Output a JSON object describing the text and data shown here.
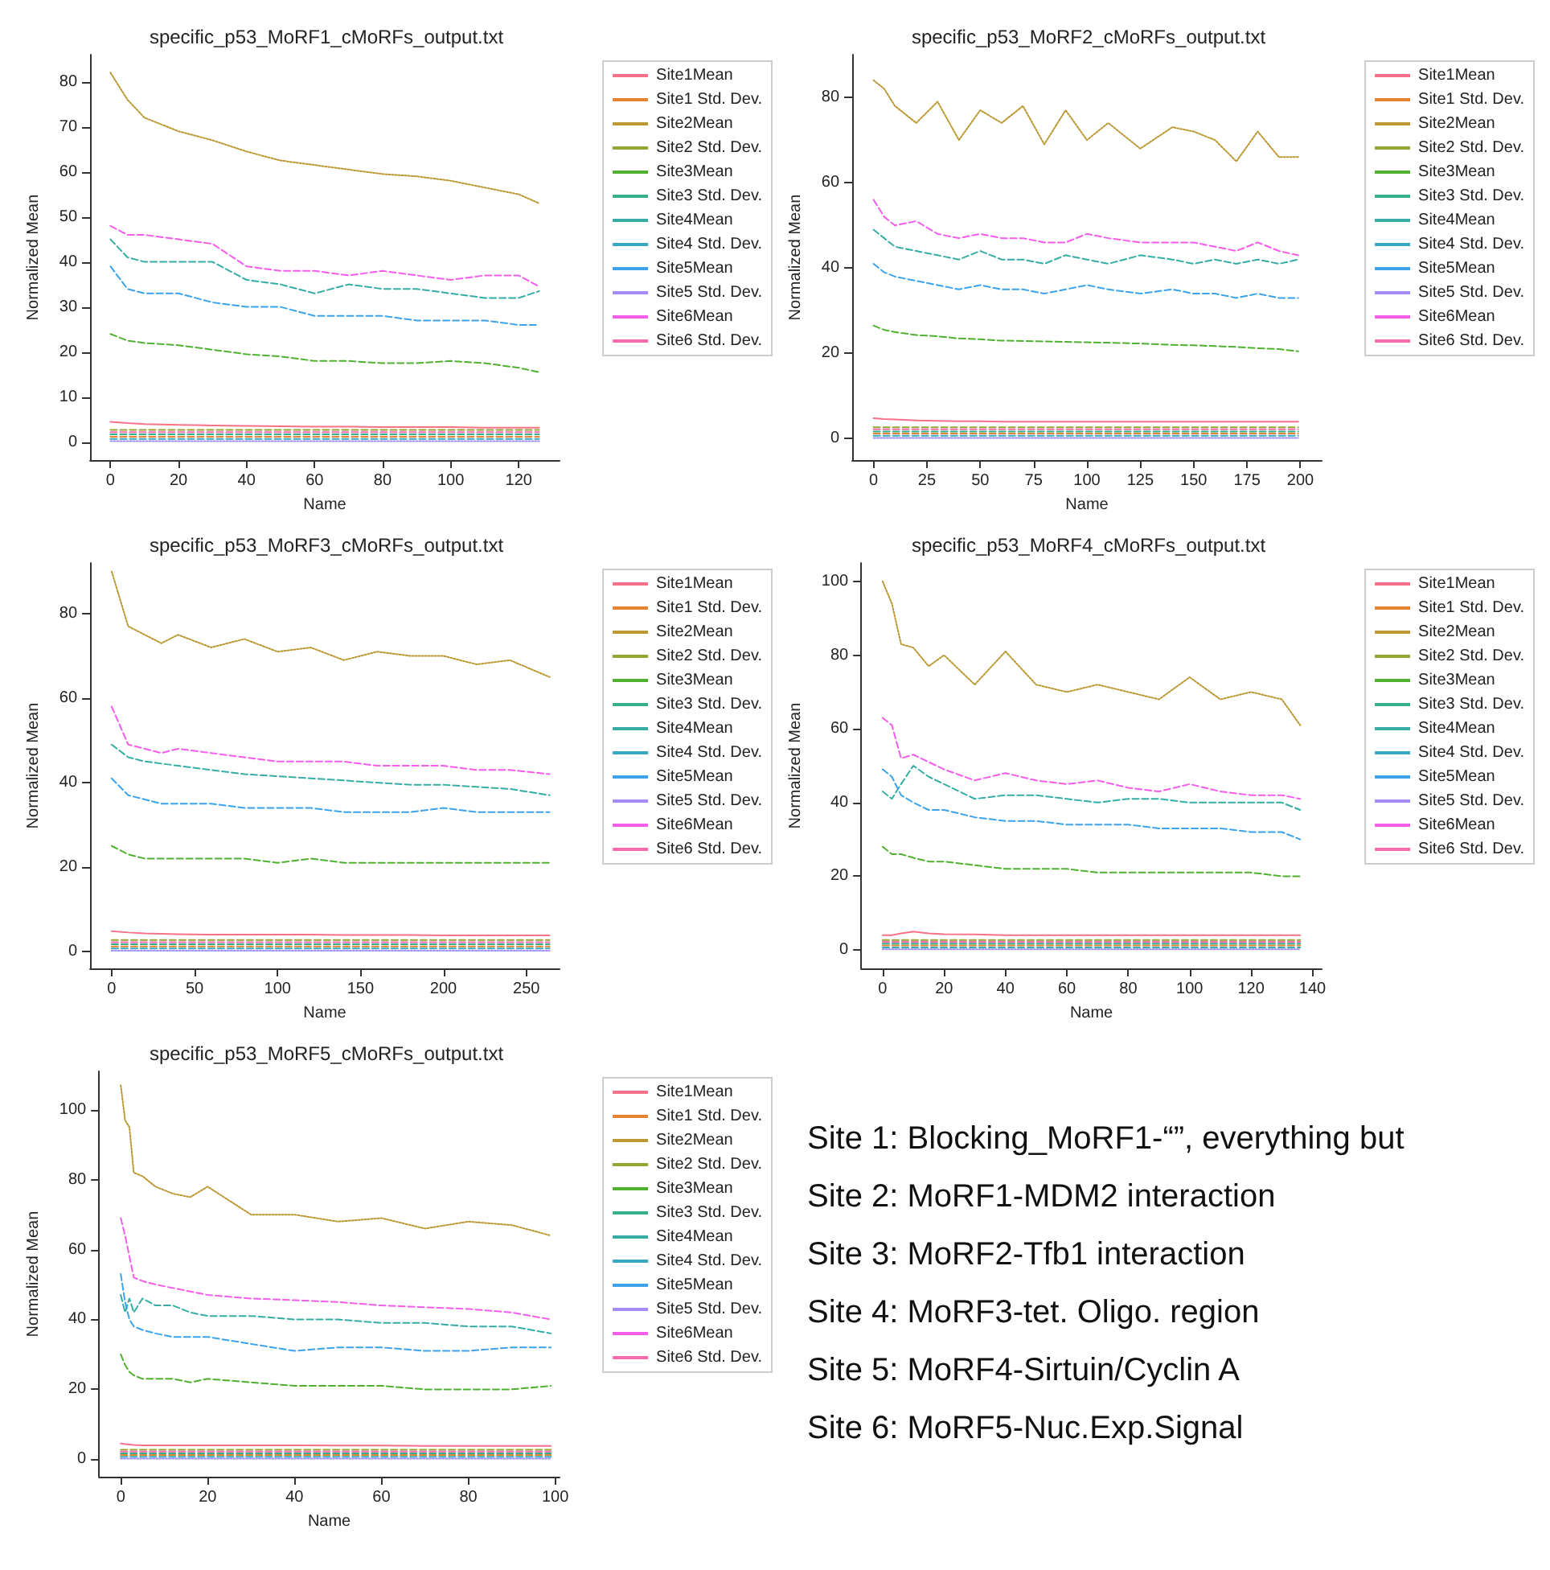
{
  "chart_data": [
    {
      "type": "line",
      "title": "specific_p53_MoRF1_cMoRFs_output.txt",
      "xlabel": "Name",
      "ylabel": "Normalized Mean",
      "xlim": [
        -6,
        132
      ],
      "xticks": [
        0,
        20,
        40,
        60,
        80,
        100,
        120
      ],
      "ylim": [
        -4,
        86
      ],
      "yticks": [
        0,
        10,
        20,
        30,
        40,
        50,
        60,
        70,
        80
      ],
      "legend": "right",
      "x": [
        0,
        5,
        10,
        20,
        30,
        40,
        50,
        60,
        70,
        80,
        90,
        100,
        110,
        120,
        126
      ],
      "series": [
        {
          "name": "Site1Mean",
          "color": "#f77189",
          "line_style": "solid",
          "values": [
            4.5,
            4.2,
            4,
            3.8,
            3.7,
            3.6,
            3.5,
            3.4,
            3.4,
            3.3,
            3.3,
            3.3,
            3.2,
            3.2,
            3.2
          ]
        },
        {
          "name": "Site1 Std. Dev.",
          "color": "#e68332",
          "line_style": "dashed",
          "values": [
            1.2,
            1.2,
            1.2,
            1.2,
            1.2,
            1.2,
            1.2,
            1.2,
            1.2,
            1.2,
            1.2,
            1.2,
            1.2,
            1.2,
            1.2
          ]
        },
        {
          "name": "Site2Mean",
          "color": "#bb9832",
          "line_style": "dotted",
          "values": [
            82,
            76,
            72,
            69,
            67,
            64.5,
            62.5,
            61.5,
            60.5,
            59.5,
            59,
            58,
            56.5,
            55,
            53
          ]
        },
        {
          "name": "Site2 Std. Dev.",
          "color": "#97a431",
          "line_style": "dashed",
          "values": [
            2.7,
            2.7,
            2.7,
            2.7,
            2.7,
            2.7,
            2.7,
            2.7,
            2.7,
            2.7,
            2.7,
            2.7,
            2.7,
            2.7,
            2.7
          ]
        },
        {
          "name": "Site3Mean",
          "color": "#50b131",
          "line_style": "dashed",
          "values": [
            24,
            22.5,
            22,
            21.5,
            20.5,
            19.5,
            19,
            18,
            18,
            17.5,
            17.5,
            18,
            17.5,
            16.5,
            15.5
          ]
        },
        {
          "name": "Site3 Std. Dev.",
          "color": "#34af8a",
          "line_style": "dashed",
          "values": [
            1.7,
            1.7,
            1.7,
            1.7,
            1.7,
            1.7,
            1.7,
            1.7,
            1.7,
            1.7,
            1.7,
            1.7,
            1.7,
            1.7,
            1.7
          ]
        },
        {
          "name": "Site4Mean",
          "color": "#36ada4",
          "line_style": "dashed",
          "values": [
            45,
            41,
            40,
            40,
            40,
            36,
            35,
            33,
            35,
            34,
            34,
            33,
            32,
            32,
            33.5
          ]
        },
        {
          "name": "Site4 Std. Dev.",
          "color": "#38aabf",
          "line_style": "dashed",
          "values": [
            0.7,
            0.7,
            0.7,
            0.7,
            0.7,
            0.7,
            0.7,
            0.7,
            0.7,
            0.7,
            0.7,
            0.7,
            0.7,
            0.7,
            0.7
          ]
        },
        {
          "name": "Site5Mean",
          "color": "#3ba3ec",
          "line_style": "dashed",
          "values": [
            39,
            34,
            33,
            33,
            31,
            30,
            30,
            28,
            28,
            28,
            27,
            27,
            27,
            26,
            26
          ]
        },
        {
          "name": "Site5 Std. Dev.",
          "color": "#a48cf4",
          "line_style": "dotted",
          "values": [
            0.2,
            0.2,
            0.2,
            0.2,
            0.2,
            0.2,
            0.2,
            0.2,
            0.2,
            0.2,
            0.2,
            0.2,
            0.2,
            0.2,
            0.2
          ]
        },
        {
          "name": "Site6Mean",
          "color": "#f45deb",
          "line_style": "dashed",
          "values": [
            48,
            46,
            46,
            45,
            44,
            39,
            38,
            38,
            37,
            38,
            37,
            36,
            37,
            37,
            34.5
          ]
        },
        {
          "name": "Site6 Std. Dev.",
          "color": "#f66bad",
          "line_style": "dashed",
          "values": [
            2.2,
            2.2,
            2.2,
            2.2,
            2.2,
            2.2,
            2.2,
            2.2,
            2.2,
            2.2,
            2.2,
            2.2,
            2.2,
            2.2,
            2.2
          ]
        }
      ]
    },
    {
      "type": "line",
      "title": "specific_p53_MoRF2_cMoRFs_output.txt",
      "xlabel": "Name",
      "ylabel": "Normalized Mean",
      "xlim": [
        -10,
        210
      ],
      "xticks": [
        0,
        25,
        50,
        75,
        100,
        125,
        150,
        175,
        200
      ],
      "ylim": [
        -5,
        90
      ],
      "yticks": [
        0,
        20,
        40,
        60,
        80
      ],
      "legend": "right",
      "x": [
        0,
        5,
        10,
        20,
        30,
        40,
        50,
        60,
        70,
        80,
        90,
        100,
        110,
        125,
        140,
        150,
        160,
        170,
        180,
        190,
        199
      ],
      "series": [
        {
          "name": "Site1Mean",
          "color": "#f77189",
          "line_style": "solid",
          "values": [
            4.8,
            4.6,
            4.5,
            4.3,
            4.2,
            4.1,
            4.1,
            4,
            4,
            4,
            4,
            4,
            4,
            4,
            4,
            4,
            4,
            4,
            4,
            4,
            4
          ]
        },
        {
          "name": "Site1 Std. Dev.",
          "color": "#e68332",
          "line_style": "dashed",
          "values": [
            1.2,
            1.2,
            1.2,
            1.2,
            1.2,
            1.2,
            1.2,
            1.2,
            1.2,
            1.2,
            1.2,
            1.2,
            1.2,
            1.2,
            1.2,
            1.2,
            1.2,
            1.2,
            1.2,
            1.2,
            1.2
          ]
        },
        {
          "name": "Site2Mean",
          "color": "#bb9832",
          "line_style": "dotted",
          "values": [
            84,
            82,
            78,
            74,
            79,
            70,
            77,
            74,
            78,
            69,
            77,
            70,
            74,
            68,
            73,
            72,
            70,
            65,
            72,
            66,
            66
          ]
        },
        {
          "name": "Site2 Std. Dev.",
          "color": "#97a431",
          "line_style": "dashed",
          "values": [
            2.7,
            2.7,
            2.7,
            2.7,
            2.7,
            2.7,
            2.7,
            2.7,
            2.7,
            2.7,
            2.7,
            2.7,
            2.7,
            2.7,
            2.7,
            2.7,
            2.7,
            2.7,
            2.7,
            2.7,
            2.7
          ]
        },
        {
          "name": "Site3Mean",
          "color": "#50b131",
          "line_style": "dashed",
          "values": [
            26.5,
            25.5,
            25,
            24.3,
            24,
            23.5,
            23.3,
            23,
            22.9,
            22.8,
            22.7,
            22.6,
            22.5,
            22.3,
            22,
            21.9,
            21.7,
            21.5,
            21.2,
            21,
            20.5
          ]
        },
        {
          "name": "Site3 Std. Dev.",
          "color": "#34af8a",
          "line_style": "dashed",
          "values": [
            1.7,
            1.7,
            1.7,
            1.7,
            1.7,
            1.7,
            1.7,
            1.7,
            1.7,
            1.7,
            1.7,
            1.7,
            1.7,
            1.7,
            1.7,
            1.7,
            1.7,
            1.7,
            1.7,
            1.7,
            1.7
          ]
        },
        {
          "name": "Site4Mean",
          "color": "#36ada4",
          "line_style": "dashed",
          "values": [
            49,
            47,
            45,
            44,
            43,
            42,
            44,
            42,
            42,
            41,
            43,
            42,
            41,
            43,
            42,
            41,
            42,
            41,
            42,
            41,
            42
          ]
        },
        {
          "name": "Site4 Std. Dev.",
          "color": "#38aabf",
          "line_style": "dashed",
          "values": [
            0.7,
            0.7,
            0.7,
            0.7,
            0.7,
            0.7,
            0.7,
            0.7,
            0.7,
            0.7,
            0.7,
            0.7,
            0.7,
            0.7,
            0.7,
            0.7,
            0.7,
            0.7,
            0.7,
            0.7,
            0.7
          ]
        },
        {
          "name": "Site5Mean",
          "color": "#3ba3ec",
          "line_style": "dashed",
          "values": [
            41,
            39,
            38,
            37,
            36,
            35,
            36,
            35,
            35,
            34,
            35,
            36,
            35,
            34,
            35,
            34,
            34,
            33,
            34,
            33,
            33
          ]
        },
        {
          "name": "Site5 Std. Dev.",
          "color": "#a48cf4",
          "line_style": "dotted",
          "values": [
            0.2,
            0.2,
            0.2,
            0.2,
            0.2,
            0.2,
            0.2,
            0.2,
            0.2,
            0.2,
            0.2,
            0.2,
            0.2,
            0.2,
            0.2,
            0.2,
            0.2,
            0.2,
            0.2,
            0.2,
            0.2
          ]
        },
        {
          "name": "Site6Mean",
          "color": "#f45deb",
          "line_style": "dashed",
          "values": [
            56,
            52,
            50,
            51,
            48,
            47,
            48,
            47,
            47,
            46,
            46,
            48,
            47,
            46,
            46,
            46,
            45,
            44,
            46,
            44,
            43
          ]
        },
        {
          "name": "Site6 Std. Dev.",
          "color": "#f66bad",
          "line_style": "dashed",
          "values": [
            2.2,
            2.2,
            2.2,
            2.2,
            2.2,
            2.2,
            2.2,
            2.2,
            2.2,
            2.2,
            2.2,
            2.2,
            2.2,
            2.2,
            2.2,
            2.2,
            2.2,
            2.2,
            2.2,
            2.2,
            2.2
          ]
        }
      ]
    },
    {
      "type": "line",
      "title": "specific_p53_MoRF3_cMoRFs_output.txt",
      "xlabel": "Name",
      "ylabel": "Normalized Mean",
      "xlim": [
        -13,
        270
      ],
      "xticks": [
        0,
        50,
        100,
        150,
        200,
        250
      ],
      "ylim": [
        -4,
        92
      ],
      "yticks": [
        0,
        20,
        40,
        60,
        80
      ],
      "legend": "right",
      "x": [
        0,
        10,
        20,
        30,
        40,
        60,
        80,
        100,
        120,
        140,
        160,
        180,
        200,
        220,
        240,
        264
      ],
      "series": [
        {
          "name": "Site1Mean",
          "color": "#f77189",
          "line_style": "solid",
          "values": [
            4.8,
            4.5,
            4.3,
            4.2,
            4.1,
            4,
            4,
            4,
            4,
            3.9,
            3.9,
            3.9,
            3.8,
            3.8,
            3.8,
            3.8
          ]
        },
        {
          "name": "Site1 Std. Dev.",
          "color": "#e68332",
          "line_style": "dashed",
          "values": [
            1.2,
            1.2,
            1.2,
            1.2,
            1.2,
            1.2,
            1.2,
            1.2,
            1.2,
            1.2,
            1.2,
            1.2,
            1.2,
            1.2,
            1.2,
            1.2
          ]
        },
        {
          "name": "Site2Mean",
          "color": "#bb9832",
          "line_style": "dotted",
          "values": [
            90,
            77,
            75,
            73,
            75,
            72,
            74,
            71,
            72,
            69,
            71,
            70,
            70,
            68,
            69,
            65
          ]
        },
        {
          "name": "Site2 Std. Dev.",
          "color": "#97a431",
          "line_style": "dashed",
          "values": [
            2.7,
            2.7,
            2.7,
            2.7,
            2.7,
            2.7,
            2.7,
            2.7,
            2.7,
            2.7,
            2.7,
            2.7,
            2.7,
            2.7,
            2.7,
            2.7
          ]
        },
        {
          "name": "Site3Mean",
          "color": "#50b131",
          "line_style": "dashed",
          "values": [
            25,
            23,
            22,
            22,
            22,
            22,
            22,
            21,
            22,
            21,
            21,
            21,
            21,
            21,
            21,
            21
          ]
        },
        {
          "name": "Site3 Std. Dev.",
          "color": "#34af8a",
          "line_style": "dashed",
          "values": [
            1.7,
            1.7,
            1.7,
            1.7,
            1.7,
            1.7,
            1.7,
            1.7,
            1.7,
            1.7,
            1.7,
            1.7,
            1.7,
            1.7,
            1.7,
            1.7
          ]
        },
        {
          "name": "Site4Mean",
          "color": "#36ada4",
          "line_style": "dashed",
          "values": [
            49,
            46,
            45,
            44.5,
            44,
            43,
            42,
            41.5,
            41,
            40.5,
            40,
            39.5,
            39.5,
            39,
            38.5,
            37
          ]
        },
        {
          "name": "Site4 Std. Dev.",
          "color": "#38aabf",
          "line_style": "dashed",
          "values": [
            0.7,
            0.7,
            0.7,
            0.7,
            0.7,
            0.7,
            0.7,
            0.7,
            0.7,
            0.7,
            0.7,
            0.7,
            0.7,
            0.7,
            0.7,
            0.7
          ]
        },
        {
          "name": "Site5Mean",
          "color": "#3ba3ec",
          "line_style": "dashed",
          "values": [
            41,
            37,
            36,
            35,
            35,
            35,
            34,
            34,
            34,
            33,
            33,
            33,
            34,
            33,
            33,
            33
          ]
        },
        {
          "name": "Site5 Std. Dev.",
          "color": "#a48cf4",
          "line_style": "dotted",
          "values": [
            0.2,
            0.2,
            0.2,
            0.2,
            0.2,
            0.2,
            0.2,
            0.2,
            0.2,
            0.2,
            0.2,
            0.2,
            0.2,
            0.2,
            0.2,
            0.2
          ]
        },
        {
          "name": "Site6Mean",
          "color": "#f45deb",
          "line_style": "dashed",
          "values": [
            58,
            49,
            48,
            47,
            48,
            47,
            46,
            45,
            45,
            45,
            44,
            44,
            44,
            43,
            43,
            42
          ]
        },
        {
          "name": "Site6 Std. Dev.",
          "color": "#f66bad",
          "line_style": "dashed",
          "values": [
            2.2,
            2.2,
            2.2,
            2.2,
            2.2,
            2.2,
            2.2,
            2.2,
            2.2,
            2.2,
            2.2,
            2.2,
            2.2,
            2.2,
            2.2,
            2.2
          ]
        }
      ]
    },
    {
      "type": "line",
      "title": "specific_p53_MoRF4_cMoRFs_output.txt",
      "xlabel": "Name",
      "ylabel": "Normalized Mean",
      "xlim": [
        -7,
        143
      ],
      "xticks": [
        0,
        20,
        40,
        60,
        80,
        100,
        120,
        140
      ],
      "ylim": [
        -5,
        105
      ],
      "yticks": [
        0,
        20,
        40,
        60,
        80,
        100
      ],
      "legend": "right",
      "x": [
        0,
        3,
        6,
        10,
        15,
        20,
        30,
        40,
        50,
        60,
        70,
        80,
        90,
        100,
        110,
        120,
        130,
        136
      ],
      "series": [
        {
          "name": "Site1Mean",
          "color": "#f77189",
          "line_style": "solid",
          "values": [
            4,
            4,
            4.5,
            5,
            4.5,
            4.3,
            4.2,
            4,
            4,
            4,
            4,
            4,
            4,
            4,
            4,
            4,
            4,
            4
          ]
        },
        {
          "name": "Site1 Std. Dev.",
          "color": "#e68332",
          "line_style": "dashed",
          "values": [
            1.2,
            1.2,
            1.2,
            1.2,
            1.2,
            1.2,
            1.2,
            1.2,
            1.2,
            1.2,
            1.2,
            1.2,
            1.2,
            1.2,
            1.2,
            1.2,
            1.2,
            1.2
          ]
        },
        {
          "name": "Site2Mean",
          "color": "#bb9832",
          "line_style": "dotted",
          "values": [
            100,
            94,
            83,
            82,
            77,
            80,
            72,
            81,
            72,
            70,
            72,
            70,
            68,
            74,
            68,
            70,
            68,
            61
          ]
        },
        {
          "name": "Site2 Std. Dev.",
          "color": "#97a431",
          "line_style": "dashed",
          "values": [
            2.7,
            2.7,
            2.7,
            2.7,
            2.7,
            2.7,
            2.7,
            2.7,
            2.7,
            2.7,
            2.7,
            2.7,
            2.7,
            2.7,
            2.7,
            2.7,
            2.7,
            2.7
          ]
        },
        {
          "name": "Site3Mean",
          "color": "#50b131",
          "line_style": "dashed",
          "values": [
            28,
            26,
            26,
            25,
            24,
            24,
            23,
            22,
            22,
            22,
            21,
            21,
            21,
            21,
            21,
            21,
            20,
            20
          ]
        },
        {
          "name": "Site3 Std. Dev.",
          "color": "#34af8a",
          "line_style": "dashed",
          "values": [
            1.7,
            1.7,
            1.7,
            1.7,
            1.7,
            1.7,
            1.7,
            1.7,
            1.7,
            1.7,
            1.7,
            1.7,
            1.7,
            1.7,
            1.7,
            1.7,
            1.7,
            1.7
          ]
        },
        {
          "name": "Site4Mean",
          "color": "#36ada4",
          "line_style": "dashed",
          "values": [
            43,
            41,
            45,
            50,
            47,
            45,
            41,
            42,
            42,
            41,
            40,
            41,
            41,
            40,
            40,
            40,
            40,
            38
          ]
        },
        {
          "name": "Site4 Std. Dev.",
          "color": "#38aabf",
          "line_style": "dashed",
          "values": [
            0.7,
            0.7,
            0.7,
            0.7,
            0.7,
            0.7,
            0.7,
            0.7,
            0.7,
            0.7,
            0.7,
            0.7,
            0.7,
            0.7,
            0.7,
            0.7,
            0.7,
            0.7
          ]
        },
        {
          "name": "Site5Mean",
          "color": "#3ba3ec",
          "line_style": "dashed",
          "values": [
            49,
            47,
            42,
            40,
            38,
            38,
            36,
            35,
            35,
            34,
            34,
            34,
            33,
            33,
            33,
            32,
            32,
            30
          ]
        },
        {
          "name": "Site5 Std. Dev.",
          "color": "#a48cf4",
          "line_style": "dotted",
          "values": [
            0.2,
            0.2,
            0.2,
            0.2,
            0.2,
            0.2,
            0.2,
            0.2,
            0.2,
            0.2,
            0.2,
            0.2,
            0.2,
            0.2,
            0.2,
            0.2,
            0.2,
            0.2
          ]
        },
        {
          "name": "Site6Mean",
          "color": "#f45deb",
          "line_style": "dashed",
          "values": [
            63,
            61,
            52,
            53,
            51,
            49,
            46,
            48,
            46,
            45,
            46,
            44,
            43,
            45,
            43,
            42,
            42,
            41
          ]
        },
        {
          "name": "Site6 Std. Dev.",
          "color": "#f66bad",
          "line_style": "dashed",
          "values": [
            2.2,
            2.2,
            2.2,
            2.2,
            2.2,
            2.2,
            2.2,
            2.2,
            2.2,
            2.2,
            2.2,
            2.2,
            2.2,
            2.2,
            2.2,
            2.2,
            2.2,
            2.2
          ]
        }
      ]
    },
    {
      "type": "line",
      "title": "specific_p53_MoRF5_cMoRFs_output.txt",
      "xlabel": "Name",
      "ylabel": "Normalized Mean",
      "xlim": [
        -5,
        101
      ],
      "xticks": [
        0,
        20,
        40,
        60,
        80,
        100
      ],
      "ylim": [
        -5,
        111
      ],
      "yticks": [
        0,
        20,
        40,
        60,
        80,
        100
      ],
      "legend": "right",
      "x": [
        0,
        1,
        2,
        3,
        5,
        8,
        12,
        16,
        20,
        30,
        40,
        50,
        60,
        70,
        80,
        90,
        99
      ],
      "series": [
        {
          "name": "Site1Mean",
          "color": "#f77189",
          "line_style": "solid",
          "values": [
            4.5,
            4.3,
            4.2,
            4.1,
            4,
            4,
            4,
            4,
            4,
            4,
            4,
            3.9,
            3.9,
            3.8,
            3.8,
            3.8,
            3.8
          ]
        },
        {
          "name": "Site1 Std. Dev.",
          "color": "#e68332",
          "line_style": "dashed",
          "values": [
            1.2,
            1.2,
            1.2,
            1.2,
            1.2,
            1.2,
            1.2,
            1.2,
            1.2,
            1.2,
            1.2,
            1.2,
            1.2,
            1.2,
            1.2,
            1.2,
            1.2
          ]
        },
        {
          "name": "Site2Mean",
          "color": "#bb9832",
          "line_style": "dotted",
          "values": [
            107,
            97,
            95,
            82,
            81,
            78,
            76,
            75,
            78,
            70,
            70,
            68,
            69,
            66,
            68,
            67,
            64
          ]
        },
        {
          "name": "Site2 Std. Dev.",
          "color": "#97a431",
          "line_style": "dashed",
          "values": [
            2.7,
            2.7,
            2.7,
            2.7,
            2.7,
            2.7,
            2.7,
            2.7,
            2.7,
            2.7,
            2.7,
            2.7,
            2.7,
            2.7,
            2.7,
            2.7,
            2.7
          ]
        },
        {
          "name": "Site3Mean",
          "color": "#50b131",
          "line_style": "dashed",
          "values": [
            30,
            27,
            25,
            24,
            23,
            23,
            23,
            22,
            23,
            22,
            21,
            21,
            21,
            20,
            20,
            20,
            21
          ]
        },
        {
          "name": "Site3 Std. Dev.",
          "color": "#34af8a",
          "line_style": "dashed",
          "values": [
            1.7,
            1.7,
            1.7,
            1.7,
            1.7,
            1.7,
            1.7,
            1.7,
            1.7,
            1.7,
            1.7,
            1.7,
            1.7,
            1.7,
            1.7,
            1.7,
            1.7
          ]
        },
        {
          "name": "Site4Mean",
          "color": "#36ada4",
          "line_style": "dashed",
          "values": [
            47,
            42,
            46,
            42,
            46,
            44,
            44,
            42,
            41,
            41,
            40,
            40,
            39,
            39,
            38,
            38,
            36
          ]
        },
        {
          "name": "Site4 Std. Dev.",
          "color": "#38aabf",
          "line_style": "dashed",
          "values": [
            0.7,
            0.7,
            0.7,
            0.7,
            0.7,
            0.7,
            0.7,
            0.7,
            0.7,
            0.7,
            0.7,
            0.7,
            0.7,
            0.7,
            0.7,
            0.7,
            0.7
          ]
        },
        {
          "name": "Site5Mean",
          "color": "#3ba3ec",
          "line_style": "dashed",
          "values": [
            53,
            45,
            40,
            38,
            37,
            36,
            35,
            35,
            35,
            33,
            31,
            32,
            32,
            31,
            31,
            32,
            32
          ]
        },
        {
          "name": "Site5 Std. Dev.",
          "color": "#a48cf4",
          "line_style": "dotted",
          "values": [
            0.2,
            0.2,
            0.2,
            0.2,
            0.2,
            0.2,
            0.2,
            0.2,
            0.2,
            0.2,
            0.2,
            0.2,
            0.2,
            0.2,
            0.2,
            0.2,
            0.2
          ]
        },
        {
          "name": "Site6Mean",
          "color": "#f45deb",
          "line_style": "dashed",
          "values": [
            69,
            64,
            58,
            52,
            51,
            50,
            49,
            48,
            47,
            46,
            45.5,
            45,
            44,
            43.5,
            43,
            42,
            40
          ]
        },
        {
          "name": "Site6 Std. Dev.",
          "color": "#f66bad",
          "line_style": "dashed",
          "values": [
            2.2,
            2.2,
            2.2,
            2.2,
            2.2,
            2.2,
            2.2,
            2.2,
            2.2,
            2.2,
            2.2,
            2.2,
            2.2,
            2.2,
            2.2,
            2.2,
            2.2
          ]
        }
      ]
    },
    {
      "type": "other",
      "annotations": [
        "Site 1: Blocking_MoRF1-“”, everything but",
        "Site 2: MoRF1-MDM2 interaction",
        "Site 3: MoRF2-Tfb1 interaction",
        "Site 4: MoRF3-tet. Oligo. region",
        "Site 5: MoRF4-Sirtuin/Cyclin A",
        "Site 6: MoRF5-Nuc.Exp.Signal"
      ]
    }
  ]
}
